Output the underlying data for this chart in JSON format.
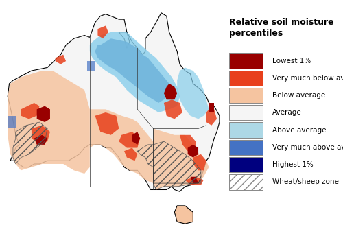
{
  "title": "Relative soil moisture\npercentiles",
  "legend_items": [
    {
      "label": "Lowest 1%",
      "color": "#990000",
      "hatch": null
    },
    {
      "label": "Very much below average",
      "color": "#E8401C",
      "hatch": null
    },
    {
      "label": "Below average",
      "color": "#F5C4A0",
      "hatch": null
    },
    {
      "label": "Average",
      "color": "#F5F5F5",
      "hatch": null
    },
    {
      "label": "Above average",
      "color": "#ADD8E6",
      "hatch": null
    },
    {
      "label": "Very much above average",
      "color": "#4472C4",
      "hatch": null
    },
    {
      "label": "Highest 1%",
      "color": "#00007F",
      "hatch": null
    },
    {
      "label": "Wheat/sheep zone",
      "color": "#FFFFFF",
      "hatch": "///"
    }
  ],
  "map_bg": "#FFFFFF",
  "fig_width": 5.0,
  "fig_height": 3.28,
  "dpi": 100
}
